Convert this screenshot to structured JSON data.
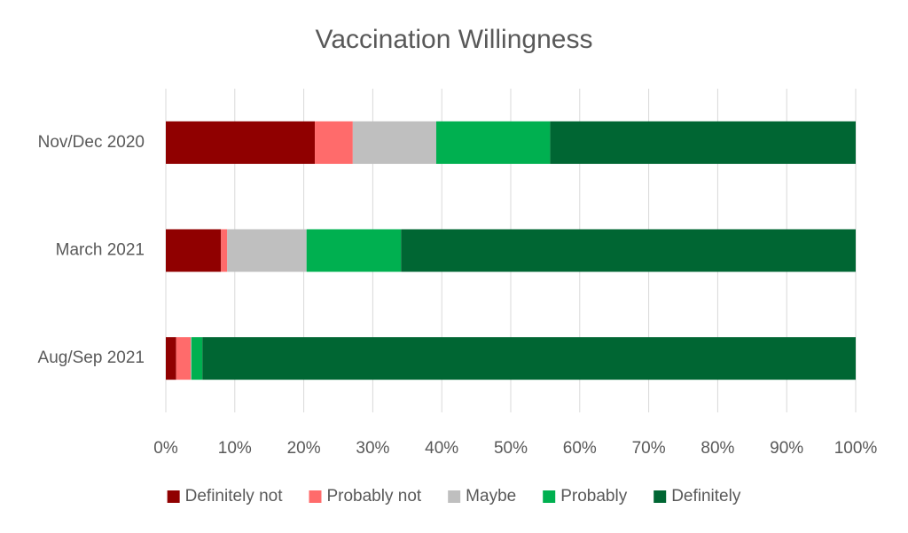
{
  "chart_data": {
    "type": "stacked-bar-horizontal",
    "title": "Vaccination Willingness",
    "categories": [
      "Nov/Dec 2020",
      "March 2021",
      "Aug/Sep 2021"
    ],
    "series": [
      {
        "name": "Definitely not",
        "color": "#900000",
        "values": [
          21.6,
          8.0,
          1.5
        ]
      },
      {
        "name": "Probably not",
        "color": "#ff6b6b",
        "values": [
          5.5,
          0.9,
          2.1
        ]
      },
      {
        "name": "Maybe",
        "color": "#bfbfbf",
        "values": [
          12.1,
          11.5,
          0.1
        ]
      },
      {
        "name": "Probably",
        "color": "#00b050",
        "values": [
          16.5,
          13.7,
          1.6
        ]
      },
      {
        "name": "Definitely",
        "color": "#006633",
        "values": [
          44.3,
          65.9,
          94.7
        ]
      }
    ],
    "xlim": [
      0,
      100
    ],
    "xticks": [
      {
        "value": 0,
        "label": "0%"
      },
      {
        "value": 10,
        "label": "10%"
      },
      {
        "value": 20,
        "label": "20%"
      },
      {
        "value": 30,
        "label": "30%"
      },
      {
        "value": 40,
        "label": "40%"
      },
      {
        "value": 50,
        "label": "50%"
      },
      {
        "value": 60,
        "label": "60%"
      },
      {
        "value": 70,
        "label": "70%"
      },
      {
        "value": 80,
        "label": "80%"
      },
      {
        "value": 90,
        "label": "90%"
      },
      {
        "value": 100,
        "label": "100%"
      }
    ],
    "grid": true,
    "legend": "bottom"
  }
}
